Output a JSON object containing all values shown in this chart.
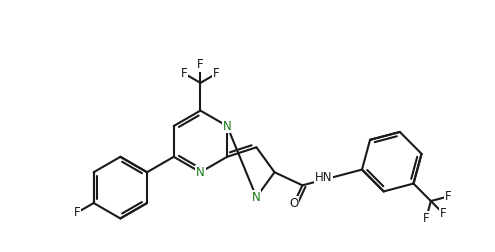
{
  "bg_color": "#ffffff",
  "line_color": "#1a1a1a",
  "N_color": "#1a7a1a",
  "line_width": 1.5,
  "font_size": 8.5,
  "figsize": [
    4.95,
    2.52
  ],
  "dpi": 100,
  "BL": 0.68,
  "do": 0.075,
  "xlim": [
    -0.3,
    10.3
  ],
  "ylim": [
    -0.2,
    5.3
  ]
}
